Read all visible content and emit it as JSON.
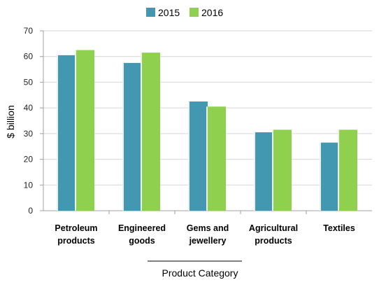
{
  "chart_data": {
    "type": "bar",
    "categories": [
      [
        "Petroleum",
        "products"
      ],
      [
        "Engineered",
        "goods"
      ],
      [
        "Gems and",
        "jewellery"
      ],
      [
        "Agricultural",
        "products"
      ],
      [
        "Textiles"
      ]
    ],
    "series": [
      {
        "name": "2015",
        "color": "#4198b0",
        "values": [
          60.5,
          57.5,
          42.5,
          30.5,
          26.5
        ]
      },
      {
        "name": "2016",
        "color": "#8fd14f",
        "values": [
          62.5,
          61.5,
          40.5,
          31.5,
          31.5
        ]
      }
    ],
    "xlabel": "Product Category",
    "ylabel": "$ billion",
    "ylim": [
      0,
      70
    ],
    "yticks": [
      "0",
      "10",
      "20",
      "30",
      "40",
      "50",
      "60",
      "70"
    ],
    "grid": true,
    "legend": "top-center"
  }
}
